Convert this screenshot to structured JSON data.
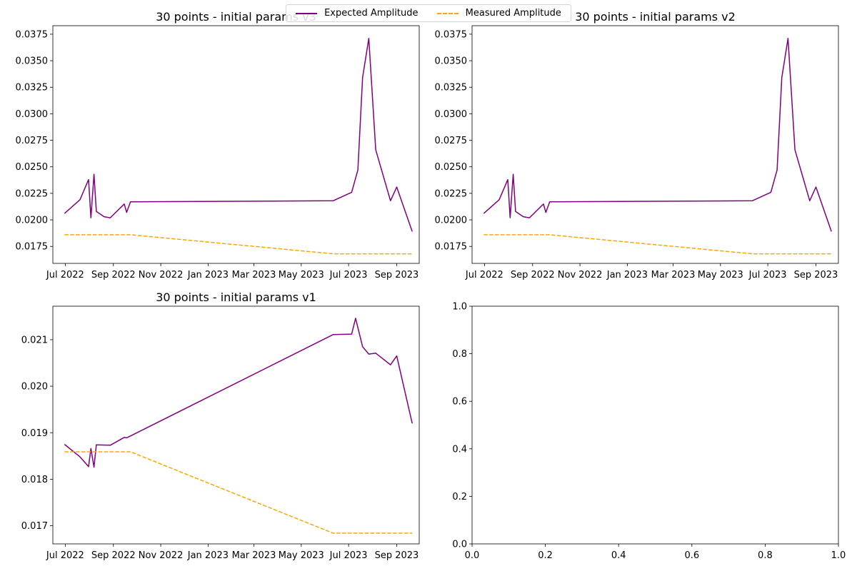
{
  "legend": {
    "expected_label": "Expected Amplitude",
    "measured_label": "Measured Amplitude"
  },
  "colors": {
    "expected": "#800080",
    "measured": "#ffa500"
  },
  "chart_data": [
    {
      "type": "line",
      "title": "30 points - initial params v3",
      "x_tick_labels": [
        "Jul 2022",
        "Sep 2022",
        "Nov 2022",
        "Jan 2023",
        "Mar 2023",
        "May 2023",
        "Jul 2023",
        "Sep 2023"
      ],
      "y_ticks": [
        0.0175,
        0.02,
        0.0225,
        0.025,
        0.0275,
        0.03,
        0.0325,
        0.035,
        0.0375
      ],
      "y_tick_labels": [
        "0.0175",
        "0.0200",
        "0.0225",
        "0.0250",
        "0.0275",
        "0.0300",
        "0.0325",
        "0.0350",
        "0.0375"
      ],
      "ylim": [
        0.0159,
        0.0383
      ],
      "xlim": [
        "2022-06-15",
        "2023-09-30"
      ],
      "series": [
        {
          "name": "Expected Amplitude",
          "style": "solid",
          "color": "#800080",
          "points": [
            [
              "2022-06-30",
              0.0206
            ],
            [
              "2022-07-20",
              0.0219
            ],
            [
              "2022-07-31",
              0.0238
            ],
            [
              "2022-08-03",
              0.0202
            ],
            [
              "2022-08-07",
              0.0243
            ],
            [
              "2022-08-10",
              0.0208
            ],
            [
              "2022-08-20",
              0.0203
            ],
            [
              "2022-08-28",
              0.0202
            ],
            [
              "2022-09-15",
              0.0215
            ],
            [
              "2022-09-18",
              0.0207
            ],
            [
              "2022-09-23",
              0.0217
            ],
            [
              "2023-06-11",
              0.0218
            ],
            [
              "2023-07-05",
              0.0226
            ],
            [
              "2023-07-13",
              0.0247
            ],
            [
              "2023-07-19",
              0.0334
            ],
            [
              "2023-07-27",
              0.0371
            ],
            [
              "2023-08-05",
              0.0266
            ],
            [
              "2023-08-24",
              0.0218
            ],
            [
              "2023-09-01",
              0.0231
            ],
            [
              "2023-09-21",
              0.0189
            ]
          ]
        },
        {
          "name": "Measured Amplitude",
          "style": "dashed",
          "color": "#ffa500",
          "points": [
            [
              "2022-06-30",
              0.0186
            ],
            [
              "2022-09-23",
              0.0186
            ],
            [
              "2023-06-11",
              0.0168
            ],
            [
              "2023-09-21",
              0.0168
            ]
          ]
        }
      ]
    },
    {
      "type": "line",
      "title": "30 points - initial params v2",
      "x_tick_labels": [
        "Jul 2022",
        "Sep 2022",
        "Nov 2022",
        "Jan 2023",
        "Mar 2023",
        "May 2023",
        "Jul 2023",
        "Sep 2023"
      ],
      "y_ticks": [
        0.0175,
        0.02,
        0.0225,
        0.025,
        0.0275,
        0.03,
        0.0325,
        0.035,
        0.0375
      ],
      "y_tick_labels": [
        "0.0175",
        "0.0200",
        "0.0225",
        "0.0250",
        "0.0275",
        "0.0300",
        "0.0325",
        "0.0350",
        "0.0375"
      ],
      "ylim": [
        0.0159,
        0.0383
      ],
      "xlim": [
        "2022-06-15",
        "2023-09-30"
      ],
      "series": [
        {
          "name": "Expected Amplitude",
          "style": "solid",
          "color": "#800080",
          "points": [
            [
              "2022-06-30",
              0.0206
            ],
            [
              "2022-07-20",
              0.0219
            ],
            [
              "2022-07-31",
              0.0238
            ],
            [
              "2022-08-03",
              0.0202
            ],
            [
              "2022-08-07",
              0.0243
            ],
            [
              "2022-08-10",
              0.0208
            ],
            [
              "2022-08-20",
              0.0203
            ],
            [
              "2022-08-28",
              0.0202
            ],
            [
              "2022-09-15",
              0.0215
            ],
            [
              "2022-09-18",
              0.0207
            ],
            [
              "2022-09-23",
              0.0217
            ],
            [
              "2023-06-11",
              0.0218
            ],
            [
              "2023-07-05",
              0.0226
            ],
            [
              "2023-07-13",
              0.0247
            ],
            [
              "2023-07-19",
              0.0334
            ],
            [
              "2023-07-27",
              0.0371
            ],
            [
              "2023-08-05",
              0.0266
            ],
            [
              "2023-08-24",
              0.0218
            ],
            [
              "2023-09-01",
              0.0231
            ],
            [
              "2023-09-21",
              0.0189
            ]
          ]
        },
        {
          "name": "Measured Amplitude",
          "style": "dashed",
          "color": "#ffa500",
          "points": [
            [
              "2022-06-30",
              0.0186
            ],
            [
              "2022-09-23",
              0.0186
            ],
            [
              "2023-06-11",
              0.0168
            ],
            [
              "2023-09-21",
              0.0168
            ]
          ]
        }
      ]
    },
    {
      "type": "line",
      "title": "30 points - initial params v1",
      "x_tick_labels": [
        "Jul 2022",
        "Sep 2022",
        "Nov 2022",
        "Jan 2023",
        "Mar 2023",
        "May 2023",
        "Jul 2023",
        "Sep 2023"
      ],
      "y_ticks": [
        0.017,
        0.018,
        0.019,
        0.02,
        0.021
      ],
      "y_tick_labels": [
        "0.017",
        "0.018",
        "0.019",
        "0.020",
        "0.021"
      ],
      "ylim": [
        0.01661,
        0.02172
      ],
      "xlim": [
        "2022-06-15",
        "2023-09-30"
      ],
      "series": [
        {
          "name": "Expected Amplitude",
          "style": "solid",
          "color": "#800080",
          "points": [
            [
              "2022-06-30",
              0.01875
            ],
            [
              "2022-07-20",
              0.01848
            ],
            [
              "2022-07-31",
              0.01827
            ],
            [
              "2022-08-03",
              0.01866
            ],
            [
              "2022-08-07",
              0.01826
            ],
            [
              "2022-08-10",
              0.01874
            ],
            [
              "2022-08-28",
              0.01873
            ],
            [
              "2022-09-15",
              0.0189
            ],
            [
              "2022-09-18",
              0.01889
            ],
            [
              "2022-09-23",
              0.01893
            ],
            [
              "2023-06-11",
              0.02111
            ],
            [
              "2023-07-05",
              0.02112
            ],
            [
              "2023-07-10",
              0.02146
            ],
            [
              "2023-07-19",
              0.02085
            ],
            [
              "2023-07-27",
              0.02069
            ],
            [
              "2023-08-05",
              0.02071
            ],
            [
              "2023-08-24",
              0.02046
            ],
            [
              "2023-09-01",
              0.02065
            ],
            [
              "2023-09-21",
              0.0192
            ]
          ]
        },
        {
          "name": "Measured Amplitude",
          "style": "dashed",
          "color": "#ffa500",
          "points": [
            [
              "2022-06-30",
              0.01859
            ],
            [
              "2022-09-23",
              0.01859
            ],
            [
              "2023-06-11",
              0.01684
            ],
            [
              "2023-09-21",
              0.01684
            ]
          ]
        }
      ]
    },
    {
      "type": "line",
      "title": "",
      "x_ticks": [
        0.0,
        0.2,
        0.4,
        0.6,
        0.8,
        1.0
      ],
      "x_tick_labels": [
        "0.0",
        "0.2",
        "0.4",
        "0.6",
        "0.8",
        "1.0"
      ],
      "y_ticks": [
        0.0,
        0.2,
        0.4,
        0.6,
        0.8,
        1.0
      ],
      "y_tick_labels": [
        "0.0",
        "0.2",
        "0.4",
        "0.6",
        "0.8",
        "1.0"
      ],
      "xlim": [
        0,
        1
      ],
      "ylim": [
        0,
        1
      ],
      "series": []
    }
  ]
}
